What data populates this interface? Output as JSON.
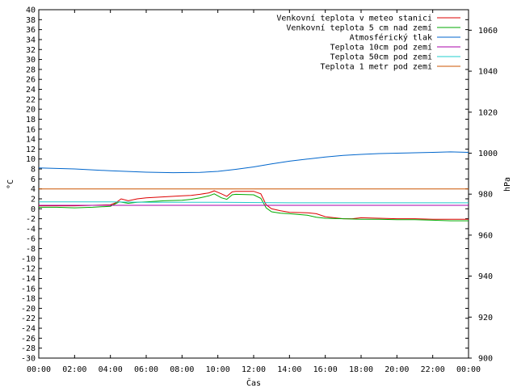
{
  "chart_data": {
    "type": "line",
    "xlabel": "Čas",
    "ylabel_left": "°C",
    "ylabel_right": "hPa",
    "ylim_left": [
      -30,
      40
    ],
    "ylim_right": [
      900,
      1070
    ],
    "xlim_hours": [
      0,
      24
    ],
    "grid": false,
    "legend_position": "top-right",
    "x_ticks": [
      "00:00",
      "02:00",
      "04:00",
      "06:00",
      "08:00",
      "10:00",
      "12:00",
      "14:00",
      "16:00",
      "18:00",
      "20:00",
      "22:00",
      "00:00"
    ],
    "y_left_ticks": [
      40,
      38,
      36,
      34,
      32,
      30,
      28,
      26,
      24,
      22,
      20,
      18,
      16,
      14,
      12,
      10,
      8,
      6,
      4,
      2,
      0,
      -2,
      -4,
      -6,
      -8,
      -10,
      -12,
      -14,
      -16,
      -18,
      -20,
      -22,
      -24,
      -26,
      -28,
      -30
    ],
    "y_right_ticks": [
      900,
      920,
      940,
      960,
      980,
      1000,
      1020,
      1040,
      1060
    ],
    "series": [
      {
        "name": "Venkovní teplota v meteo stanici",
        "color": "#dd0000",
        "axis": "left",
        "x": [
          0,
          1,
          2,
          3,
          4,
          4.3,
          4.6,
          5,
          5.5,
          6,
          6.5,
          7,
          7.5,
          8,
          8.5,
          9,
          9.5,
          9.8,
          10.2,
          10.5,
          10.8,
          11,
          12,
          12.4,
          12.7,
          13,
          13.5,
          14,
          15,
          15.5,
          16,
          16.5,
          17,
          17.5,
          18,
          19,
          20,
          21,
          22,
          23,
          24
        ],
        "y": [
          0.6,
          0.6,
          0.6,
          0.7,
          0.8,
          1.2,
          2.0,
          1.6,
          2.0,
          2.2,
          2.3,
          2.4,
          2.5,
          2.6,
          2.7,
          2.9,
          3.2,
          3.6,
          3.0,
          2.5,
          3.4,
          3.5,
          3.5,
          3.0,
          0.8,
          0.0,
          -0.4,
          -0.7,
          -0.8,
          -1.0,
          -1.6,
          -1.8,
          -2.0,
          -2.0,
          -1.8,
          -1.9,
          -2.0,
          -2.0,
          -2.1,
          -2.1,
          -2.1
        ]
      },
      {
        "name": "Venkovní teplota 5 cm nad zemí",
        "color": "#00aa00",
        "axis": "left",
        "x": [
          0,
          1,
          2,
          3,
          4,
          4.5,
          5,
          5.5,
          6,
          7,
          8,
          8.5,
          9,
          9.5,
          9.8,
          10.2,
          10.5,
          10.8,
          11,
          12,
          12.4,
          12.7,
          13,
          13.5,
          14,
          15,
          15.5,
          16,
          17,
          18,
          19,
          20,
          21,
          22,
          23,
          24
        ],
        "y": [
          0.3,
          0.3,
          0.2,
          0.3,
          0.5,
          1.4,
          1.1,
          1.3,
          1.4,
          1.6,
          1.7,
          1.9,
          2.2,
          2.6,
          3.0,
          2.2,
          1.9,
          2.8,
          2.9,
          2.8,
          2.1,
          0.2,
          -0.6,
          -0.9,
          -1.0,
          -1.3,
          -1.7,
          -1.9,
          -2.0,
          -2.1,
          -2.1,
          -2.2,
          -2.2,
          -2.3,
          -2.4,
          -2.4
        ]
      },
      {
        "name": "Atmosférický tlak",
        "color": "#0066cc",
        "axis": "right",
        "x": [
          0,
          2,
          4,
          6,
          7.5,
          9,
          10,
          11,
          12,
          13,
          14,
          15,
          16,
          17,
          18,
          19,
          20,
          21,
          22,
          23,
          24
        ],
        "y": [
          992.8,
          992.3,
          991.4,
          990.7,
          990.5,
          990.6,
          991.1,
          992.1,
          993.3,
          994.8,
          996.1,
          997.1,
          998.1,
          998.9,
          999.4,
          999.8,
          1000.0,
          1000.2,
          1000.4,
          1000.6,
          1000.4
        ]
      },
      {
        "name": "Teplota 10cm pod zemí",
        "color": "#aa00aa",
        "axis": "left",
        "x": [
          0,
          24
        ],
        "y": [
          0.7,
          0.7
        ]
      },
      {
        "name": "Teplota 50cm pod zemí",
        "color": "#22cccc",
        "axis": "left",
        "x": [
          0,
          4,
          6,
          10,
          14,
          18,
          22,
          24
        ],
        "y": [
          1.4,
          1.4,
          1.3,
          1.3,
          1.2,
          1.2,
          1.2,
          1.2
        ]
      },
      {
        "name": "Teplota 1 metr pod zemí",
        "color": "#cc5500",
        "axis": "left",
        "x": [
          0,
          24
        ],
        "y": [
          4.0,
          4.0
        ]
      }
    ]
  }
}
